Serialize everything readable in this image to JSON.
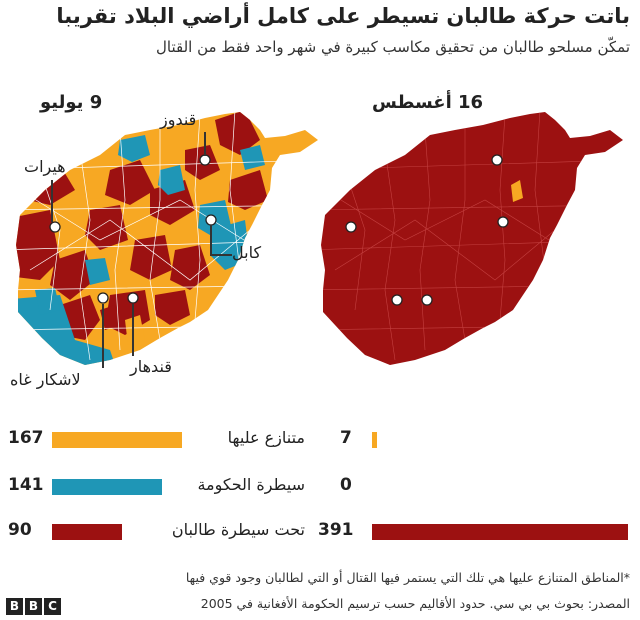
{
  "title": "باتت حركة طالبان تسيطر على كامل أراضي البلاد تقريبا",
  "subtitle": "تمكّن مسلحو طالبان من تحقيق مكاسب كبيرة في شهر واحد فقط من القتال",
  "colors": {
    "contested": "#f7a823",
    "government": "#1f96b6",
    "taliban": "#9c1111",
    "border": "#ffffff"
  },
  "maps": {
    "left": {
      "date": "9 يوليو",
      "cities": {
        "kunduz": "قندوز",
        "herat": "هيرات",
        "kabul": "كابل",
        "lashkar_gah": "لاشكار غاه",
        "kandahar": "قندهار"
      }
    },
    "right": {
      "date": "16 أغسطس"
    }
  },
  "legend": {
    "rows": [
      {
        "label": "متنازع عليها",
        "value_left": "167",
        "value_right": "7",
        "color": "#f7a823"
      },
      {
        "label": "سيطرة الحكومة",
        "value_left": "141",
        "value_right": "0",
        "color": "#1f96b6"
      },
      {
        "label": "تحت سيطرة طالبان",
        "value_left": "90",
        "value_right": "391",
        "color": "#9c1111"
      }
    ],
    "max_value": 391
  },
  "footnote": "*المناطق المتنازع عليها هي تلك التي يستمر فيها القتال أو التي لطالبان وجود قوي فيها",
  "source": "المصدر: بحوث بي بي سي. حدود الأقاليم حسب ترسيم الحكومة الأفغانية في 2005",
  "logo": [
    "B",
    "B",
    "C"
  ]
}
